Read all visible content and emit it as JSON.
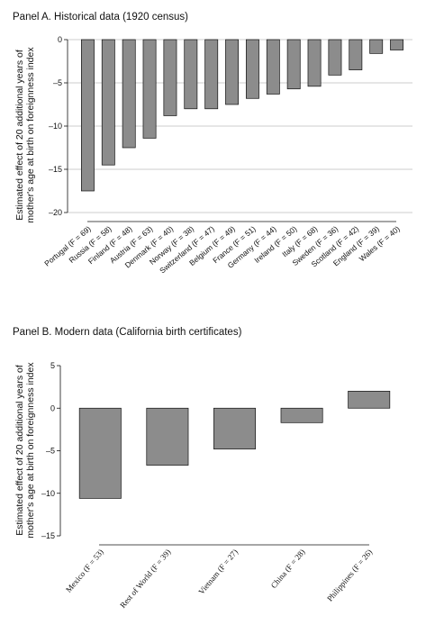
{
  "chart_data": [
    {
      "type": "bar",
      "title": "Panel A. Historical data (1920 census)",
      "ylabel_lines": [
        "Estimated effect of 20 additional years of",
        "mother's age at birth on foreignness index"
      ],
      "ylim": [
        -20,
        0
      ],
      "yticks": [
        0,
        -5,
        -10,
        -15,
        -20
      ],
      "ytick_labels": [
        "0",
        "–5",
        "–10",
        "–15",
        "–20"
      ],
      "grid": true,
      "categories": [
        "Portugal (F = 69)",
        "Russia (F = 58)",
        "Finland (F = 48)",
        "Austria (F = 63)",
        "Denmark (F = 40)",
        "Norway (F = 38)",
        "Switzerland (F = 47)",
        "Belgium (F = 49)",
        "France (F = 51)",
        "Germany (F = 44)",
        "Ireland (F = 50)",
        "Italy (F = 68)",
        "Sweden (F = 36)",
        "Scotland (F = 42)",
        "England (F = 39)",
        "Wales (F = 40)"
      ],
      "values": [
        -17.5,
        -14.5,
        -12.5,
        -11.4,
        -8.8,
        -8.0,
        -8.0,
        -7.5,
        -6.8,
        -6.3,
        -5.7,
        -5.4,
        -4.1,
        -3.5,
        -1.6,
        -1.2
      ]
    },
    {
      "type": "bar",
      "title": "Panel B. Modern data (California birth certificates)",
      "ylabel_lines": [
        "Estimated effect of 20 additional years of",
        "mother's age at birth on foreignness index"
      ],
      "ylim": [
        -15,
        5
      ],
      "yticks": [
        5,
        0,
        -5,
        -10,
        -15
      ],
      "ytick_labels": [
        "5",
        "0",
        "–5",
        "–10",
        "–15"
      ],
      "grid": false,
      "categories": [
        "Mexico (F = 53)",
        "Rest of World (F = 39)",
        "Vietnam (F = 27)",
        "China (F = 28)",
        "Philippines (F = 26)"
      ],
      "values": [
        -10.6,
        -6.7,
        -4.8,
        -1.7,
        2.0
      ]
    }
  ]
}
